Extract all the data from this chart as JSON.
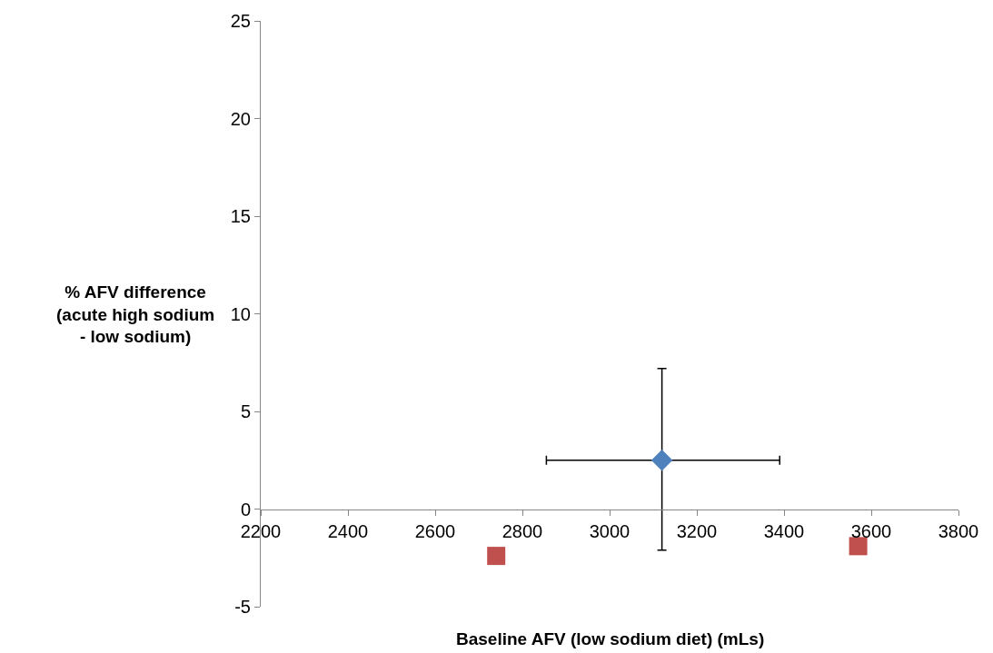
{
  "chart_data": {
    "type": "scatter",
    "xlabel": "Baseline AFV (low sodium diet) (mLs)",
    "ylabel": "% AFV difference (acute high sodium - low sodium)",
    "xlim": [
      2200,
      3800
    ],
    "xticks": [
      2200,
      2400,
      2600,
      2800,
      3000,
      3200,
      3400,
      3600,
      3800
    ],
    "ylim": [
      -5,
      25
    ],
    "yticks": [
      -5,
      0,
      5,
      10,
      15,
      20,
      25
    ],
    "series": [
      {
        "color": "#4f81bd",
        "marker": "diamond",
        "x": [
          3120
        ],
        "values": [
          2.5
        ],
        "errors": [
          [
            -2.1,
            7.2
          ]
        ],
        "xerrors": [
          [
            2855,
            3390
          ]
        ]
      },
      {
        "color": "#c0504d",
        "marker": "square",
        "x": [
          2740,
          3570
        ],
        "values": [
          -2.4,
          -1.9
        ]
      }
    ]
  }
}
